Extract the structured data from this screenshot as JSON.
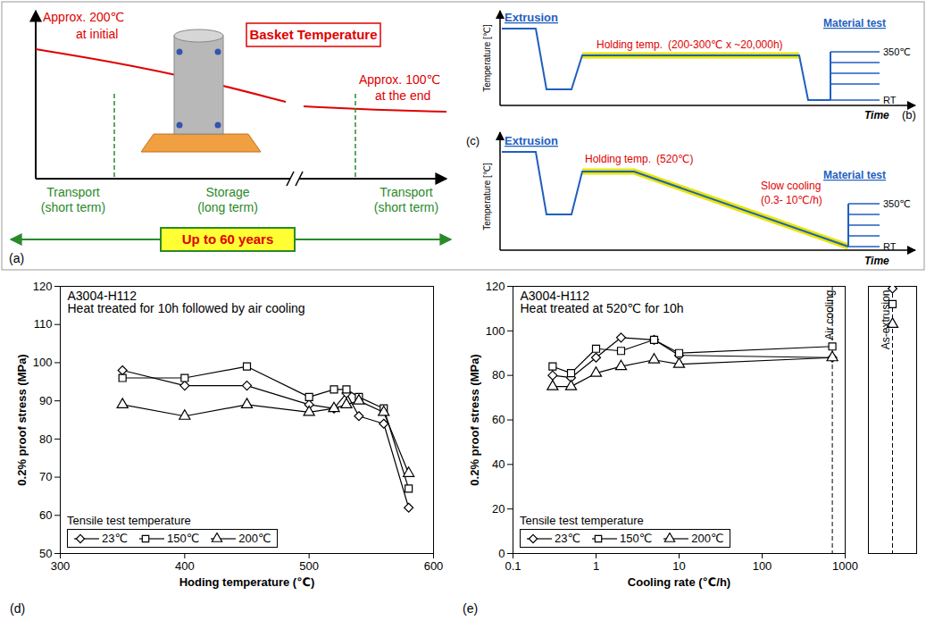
{
  "diagrams": {
    "a": {
      "label": "(a)",
      "heading": "Basket Temperature",
      "initial": [
        "Approx. 200℃",
        "at initial"
      ],
      "end": [
        "Approx. 100℃",
        "at the end"
      ],
      "phases": [
        [
          "Transport",
          "(short term)"
        ],
        [
          "Storage",
          "(long term)"
        ],
        [
          "Transport",
          "(short term)"
        ]
      ],
      "duration": "Up to 60 years"
    },
    "b": {
      "label": "(b)",
      "y_axis": "Temperature [℃]",
      "x_axis": "Time",
      "start": "Extrusion",
      "hold": [
        "Holding temp.",
        "(200-300℃ x ~20,000h)"
      ],
      "test": "Material test",
      "test_top": "350℃",
      "test_bottom": "RT"
    },
    "c": {
      "label": "(c)",
      "y_axis": "Temperature [℃]",
      "x_axis": "Time",
      "start": "Extrusion",
      "hold": [
        "Holding temp.",
        "(520℃)"
      ],
      "cool": [
        "Slow cooling",
        "(0.3- 10℃/h)"
      ],
      "test": "Material test",
      "test_top": "350℃",
      "test_bottom": "RT"
    }
  },
  "chart_data": [
    {
      "type": "line",
      "panel_label": "(d)",
      "title": "A3004-H112",
      "subtitle": "Heat treated for 10h followed by air cooling",
      "x_label": "Hoding temperature (℃)",
      "y_label": "0.2% proof stress (MPa)",
      "x": [
        350,
        400,
        450,
        500,
        520,
        530,
        540,
        560,
        580
      ],
      "xlim": [
        300,
        600
      ],
      "xticks": [
        300,
        400,
        500,
        600
      ],
      "ylim": [
        50,
        120
      ],
      "yticks": [
        50,
        60,
        70,
        80,
        90,
        100,
        110,
        120
      ],
      "grid": false,
      "legend": "bottom-left",
      "legend_title": "Tensile test temperature",
      "series": [
        {
          "name": "23℃",
          "color": "#000000",
          "marker": "diamond",
          "values": [
            98,
            94,
            94,
            89,
            88,
            92,
            86,
            84,
            62
          ]
        },
        {
          "name": "150℃",
          "color": "#000000",
          "marker": "square",
          "values": [
            96,
            96,
            99,
            91,
            93,
            93,
            91,
            88,
            67
          ]
        },
        {
          "name": "200℃",
          "color": "#000000",
          "marker": "triangle",
          "values": [
            89,
            86,
            89,
            87,
            88,
            89,
            90,
            87,
            71
          ]
        }
      ]
    },
    {
      "type": "line",
      "panel_label": "(e)",
      "title": "A3004-H112",
      "subtitle": "Heat treated at 520℃ for 10h",
      "x_label": "Cooling rate (℃/h)",
      "y_label": "0.2% proof stress (MPa)",
      "log": "x",
      "x": [
        0.3,
        0.5,
        1,
        2,
        5,
        10,
        700
      ],
      "xlim": [
        0.1,
        1000
      ],
      "xticks": [
        0.1,
        1,
        10,
        100,
        1000
      ],
      "ylim": [
        0,
        120
      ],
      "yticks": [
        0,
        20,
        40,
        60,
        80,
        100,
        120
      ],
      "grid": false,
      "legend": "bottom-left",
      "legend_title": "Tensile test temperature",
      "reference_lines": [
        {
          "x": 700,
          "label": "Air cooling"
        }
      ],
      "side_panel": {
        "label": "As-extrusion"
      },
      "series": [
        {
          "name": "23℃",
          "color": "#000000",
          "marker": "diamond",
          "values": [
            80,
            79,
            88,
            97,
            96,
            89,
            88
          ],
          "as_extrusion": 119
        },
        {
          "name": "150℃",
          "color": "#000000",
          "marker": "square",
          "values": [
            84,
            81,
            92,
            91,
            96,
            90,
            93
          ],
          "as_extrusion": 112
        },
        {
          "name": "200℃",
          "color": "#000000",
          "marker": "triangle",
          "values": [
            75,
            75,
            81,
            84,
            87,
            85,
            88
          ],
          "as_extrusion": 103
        }
      ]
    }
  ]
}
